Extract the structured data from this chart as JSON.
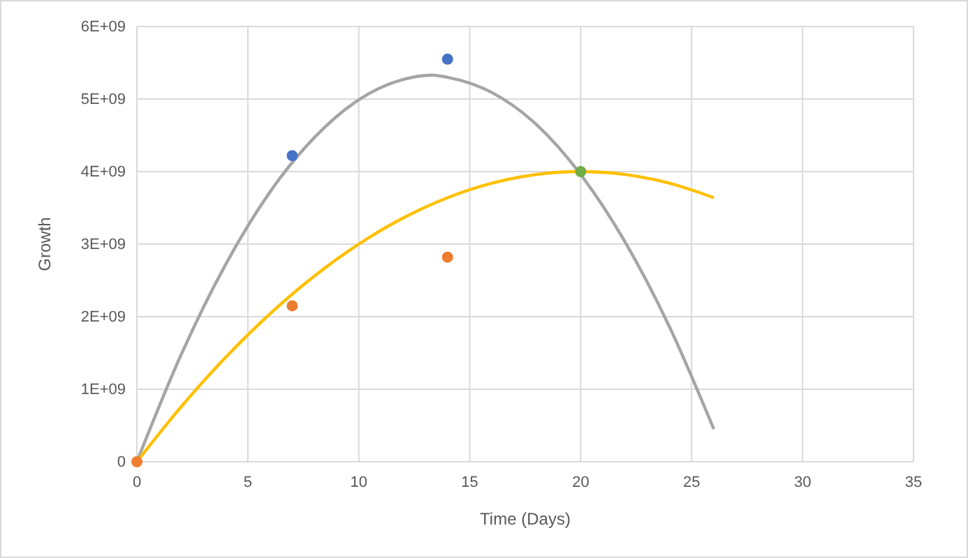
{
  "chart_data": {
    "type": "scatter",
    "xlabel": "Time (Days)",
    "ylabel": "Growth",
    "xlim": [
      0,
      35
    ],
    "xticks": [
      0,
      5,
      10,
      15,
      20,
      25,
      30,
      35
    ],
    "ylim": [
      0,
      6000000000.0
    ],
    "yticks": [
      {
        "value": 0,
        "label": "0"
      },
      {
        "value": 1000000000.0,
        "label": "1E+09"
      },
      {
        "value": 2000000000.0,
        "label": "2E+09"
      },
      {
        "value": 3000000000.0,
        "label": "3E+09"
      },
      {
        "value": 4000000000.0,
        "label": "4E+09"
      },
      {
        "value": 5000000000.0,
        "label": "5E+09"
      },
      {
        "value": 6000000000.0,
        "label": "6E+09"
      }
    ],
    "grid": true,
    "series": [
      {
        "type": "line",
        "color": "#a5a5a5",
        "marker": "none",
        "x": [
          0,
          2,
          4,
          6,
          8,
          10,
          12,
          13.3,
          14,
          16,
          18,
          20,
          22,
          24,
          26
        ],
        "values": [
          0,
          1480000000.0,
          2720000000.0,
          3720000000.0,
          4470000000.0,
          4990000000.0,
          5270000000.0,
          5330000000.0,
          5300000000.0,
          5090000000.0,
          4650000000.0,
          3960000000.0,
          3030000000.0,
          1860000000.0,
          450000000.0
        ]
      },
      {
        "type": "line",
        "color": "#ffc000",
        "marker": "none",
        "x": [
          0,
          2,
          4,
          6,
          8,
          10,
          12,
          14,
          16,
          18,
          20,
          22,
          24,
          26
        ],
        "values": [
          0,
          760000000.0,
          1440000000.0,
          2040000000.0,
          2560000000.0,
          3000000000.0,
          3360000000.0,
          3640000000.0,
          3840000000.0,
          3960000000.0,
          4000000000.0,
          3960000000.0,
          3840000000.0,
          3640000000.0
        ]
      },
      {
        "color": "#4472c4",
        "marker": "circle",
        "x": [
          7,
          14
        ],
        "values": [
          4220000000.0,
          5550000000.0
        ]
      },
      {
        "color": "#ed7d31",
        "marker": "circle",
        "x": [
          0,
          7,
          14
        ],
        "values": [
          0,
          2150000000.0,
          2820000000.0
        ]
      },
      {
        "color": "#70ad47",
        "marker": "circle",
        "x": [
          20
        ],
        "values": [
          4000000000.0
        ]
      }
    ]
  }
}
